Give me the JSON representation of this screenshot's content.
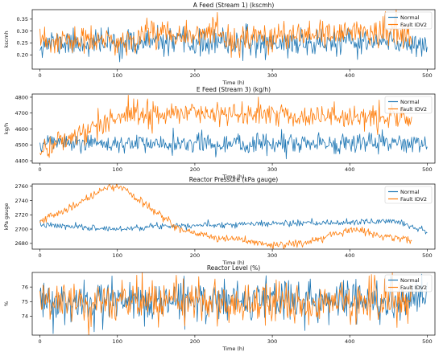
{
  "colors": {
    "normal": "#1f77b4",
    "fault": "#ff7f0e",
    "axis": "#000000",
    "background": "#ffffff"
  },
  "chart_data": [
    {
      "type": "line",
      "title": "A Feed (Stream 1) (kscmh)",
      "xlabel": "Time (h)",
      "ylabel": "kscmh",
      "xlim": [
        -10,
        510
      ],
      "ylim": [
        0.14,
        0.39
      ],
      "xticks": [
        0,
        100,
        200,
        300,
        400,
        500
      ],
      "yticks": [
        0.2,
        0.25,
        0.3,
        0.35
      ],
      "ytick_labels": [
        "0.20",
        "0.25",
        "0.30",
        "0.35"
      ],
      "grid": false,
      "legend": "top-right",
      "series": [
        {
          "name": "Normal",
          "x_range": [
            0,
            500
          ],
          "baseline": [
            [
              0,
              0.25
            ],
            [
              500,
              0.25
            ]
          ],
          "noise": 0.028,
          "seed": 11
        },
        {
          "name": "Fault IDV2",
          "x_range": [
            0,
            480
          ],
          "baseline": [
            [
              0,
              0.25
            ],
            [
              60,
              0.26
            ],
            [
              110,
              0.25
            ],
            [
              140,
              0.3
            ],
            [
              200,
              0.29
            ],
            [
              230,
              0.28
            ],
            [
              260,
              0.25
            ],
            [
              300,
              0.28
            ],
            [
              350,
              0.27
            ],
            [
              400,
              0.3
            ],
            [
              450,
              0.3
            ],
            [
              480,
              0.28
            ]
          ],
          "noise": 0.03,
          "seed": 23
        }
      ]
    },
    {
      "type": "line",
      "title": "E Feed (Stream 3) (kg/h)",
      "xlabel": "Time (h)",
      "ylabel": "kg/h",
      "xlim": [
        -10,
        510
      ],
      "ylim": [
        4385,
        4820
      ],
      "xticks": [
        0,
        100,
        200,
        300,
        400,
        500
      ],
      "yticks": [
        4400,
        4500,
        4600,
        4700,
        4800
      ],
      "ytick_labels": [
        "4400",
        "4500",
        "4600",
        "4700",
        "4800"
      ],
      "grid": false,
      "legend": "top-right",
      "series": [
        {
          "name": "Normal",
          "x_range": [
            0,
            500
          ],
          "baseline": [
            [
              0,
              4510
            ],
            [
              500,
              4510
            ]
          ],
          "noise": 30,
          "seed": 5
        },
        {
          "name": "Fault IDV2",
          "x_range": [
            0,
            480
          ],
          "baseline": [
            [
              0,
              4470
            ],
            [
              30,
              4530
            ],
            [
              60,
              4580
            ],
            [
              90,
              4670
            ],
            [
              130,
              4700
            ],
            [
              200,
              4700
            ],
            [
              300,
              4690
            ],
            [
              400,
              4680
            ],
            [
              480,
              4660
            ]
          ],
          "noise": 38,
          "seed": 41
        }
      ]
    },
    {
      "type": "line",
      "title": "Reactor Pressure (kPa gauge)",
      "xlabel": "Time (h)",
      "ylabel": "kPa gauge",
      "xlim": [
        -10,
        510
      ],
      "ylim": [
        2672,
        2763
      ],
      "xticks": [
        0,
        100,
        200,
        300,
        400,
        500
      ],
      "yticks": [
        2680,
        2700,
        2720,
        2740,
        2760
      ],
      "ytick_labels": [
        "2680",
        "2700",
        "2720",
        "2740",
        "2760"
      ],
      "grid": false,
      "legend": "top-right",
      "series": [
        {
          "name": "Normal",
          "x_range": [
            0,
            500
          ],
          "baseline": [
            [
              0,
              2706
            ],
            [
              60,
              2702
            ],
            [
              100,
              2700
            ],
            [
              160,
              2705
            ],
            [
              220,
              2706
            ],
            [
              300,
              2708
            ],
            [
              360,
              2708
            ],
            [
              420,
              2710
            ],
            [
              460,
              2712
            ],
            [
              490,
              2700
            ],
            [
              500,
              2697
            ]
          ],
          "noise": 2.2,
          "seed": 7
        },
        {
          "name": "Fault IDV2",
          "x_range": [
            0,
            480
          ],
          "baseline": [
            [
              0,
              2712
            ],
            [
              40,
              2730
            ],
            [
              70,
              2748
            ],
            [
              90,
              2760
            ],
            [
              110,
              2755
            ],
            [
              140,
              2730
            ],
            [
              180,
              2700
            ],
            [
              220,
              2690
            ],
            [
              260,
              2685
            ],
            [
              300,
              2678
            ],
            [
              340,
              2680
            ],
            [
              380,
              2692
            ],
            [
              410,
              2700
            ],
            [
              440,
              2690
            ],
            [
              470,
              2686
            ],
            [
              480,
              2682
            ]
          ],
          "noise": 2.8,
          "seed": 19
        }
      ]
    },
    {
      "type": "line",
      "title": "Reactor Level (%)",
      "xlabel": "Time (h)",
      "ylabel": "%",
      "xlim": [
        -10,
        510
      ],
      "ylim": [
        72.7,
        77.0
      ],
      "xticks": [
        0,
        100,
        200,
        300,
        400,
        500
      ],
      "yticks": [
        74,
        75,
        76
      ],
      "ytick_labels": [
        "74",
        "75",
        "76"
      ],
      "grid": false,
      "legend": "top-right",
      "series": [
        {
          "name": "Normal",
          "x_range": [
            0,
            500
          ],
          "baseline": [
            [
              0,
              75.1
            ],
            [
              500,
              75.1
            ]
          ],
          "noise": 0.75,
          "seed": 3
        },
        {
          "name": "Fault IDV2",
          "x_range": [
            0,
            480
          ],
          "baseline": [
            [
              0,
              75.0
            ],
            [
              480,
              75.0
            ]
          ],
          "noise": 0.7,
          "seed": 29
        }
      ]
    }
  ]
}
